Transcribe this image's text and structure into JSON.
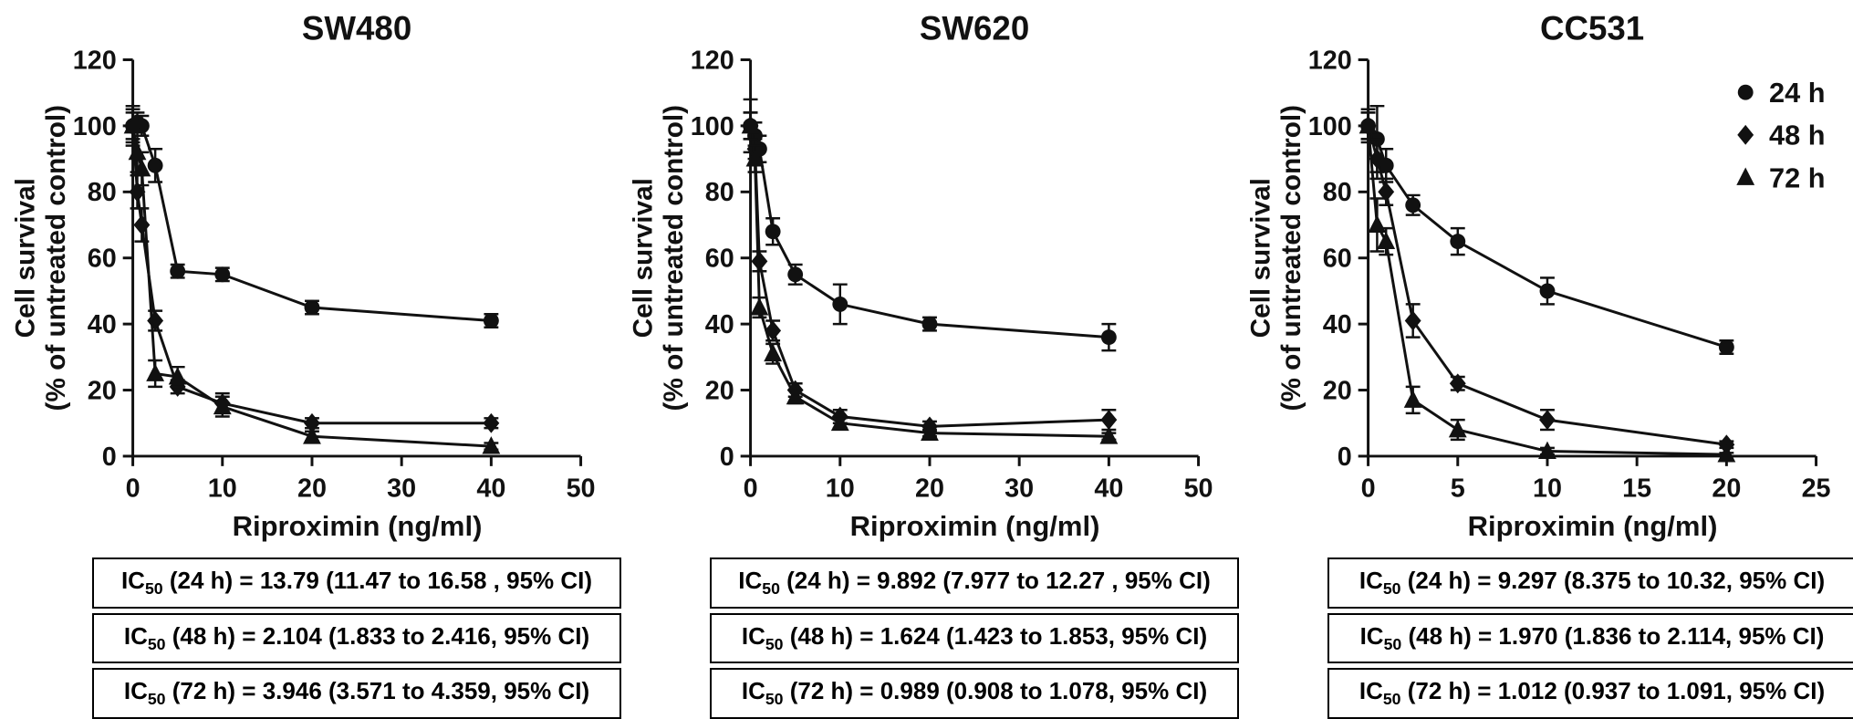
{
  "figure": {
    "xlabel": "Riproximin (ng/ml)",
    "ylabel_line1": "Cell survival",
    "ylabel_line2": "(% of untreated control)"
  },
  "chart_data": [
    {
      "type": "line",
      "title": "SW480",
      "xlabel": "Riproximin (ng/ml)",
      "ylabel_lines": [
        "Cell survival",
        "(% of untreated control)"
      ],
      "xlim": [
        0,
        50
      ],
      "ylim": [
        0,
        120
      ],
      "xticks": [
        0,
        10,
        20,
        30,
        40,
        50
      ],
      "yticks": [
        0,
        20,
        40,
        60,
        80,
        100,
        120
      ],
      "grid": false,
      "series": [
        {
          "name": "24 h",
          "marker": "circle",
          "x": [
            0,
            0.5,
            1,
            2.5,
            5,
            10,
            20,
            40
          ],
          "y": [
            100,
            101,
            100,
            88,
            56,
            55,
            45,
            41
          ],
          "err": [
            6,
            3,
            3,
            5,
            2,
            2,
            2,
            2
          ]
        },
        {
          "name": "48 h",
          "marker": "diamond",
          "x": [
            0,
            0.5,
            1,
            2.5,
            5,
            10,
            20,
            40
          ],
          "y": [
            100,
            80,
            70,
            41,
            21,
            16,
            10,
            10
          ],
          "err": [
            4,
            5,
            5,
            3,
            2,
            3,
            1.5,
            1.5
          ]
        },
        {
          "name": "72 h",
          "marker": "triangle",
          "x": [
            0,
            0.5,
            1,
            2.5,
            5,
            10,
            20,
            40
          ],
          "y": [
            100,
            92,
            87,
            25,
            24,
            15,
            6,
            3
          ],
          "err": [
            5,
            6,
            5,
            4,
            3,
            3,
            1.5,
            1
          ]
        }
      ],
      "ic50_rows": [
        {
          "pre": "IC",
          "sub": "50",
          "rest": " (24 h) = 13.79 (11.47 to 16.58 , 95% CI)"
        },
        {
          "pre": "IC",
          "sub": "50",
          "rest": " (48 h) = 2.104 (1.833 to 2.416, 95% CI)"
        },
        {
          "pre": "IC",
          "sub": "50",
          "rest": " (72 h) = 3.946 (3.571 to 4.359, 95% CI)"
        }
      ]
    },
    {
      "type": "line",
      "title": "SW620",
      "xlabel": "Riproximin (ng/ml)",
      "ylabel_lines": [
        "Cell survival",
        "(% of untreated control)"
      ],
      "xlim": [
        0,
        50
      ],
      "ylim": [
        0,
        120
      ],
      "xticks": [
        0,
        10,
        20,
        30,
        40,
        50
      ],
      "yticks": [
        0,
        20,
        40,
        60,
        80,
        100,
        120
      ],
      "grid": false,
      "series": [
        {
          "name": "24 h",
          "marker": "circle",
          "x": [
            0,
            0.5,
            1,
            2.5,
            5,
            10,
            20,
            40
          ],
          "y": [
            100,
            97,
            93,
            68,
            55,
            46,
            40,
            36
          ],
          "err": [
            8,
            4,
            4,
            4,
            3,
            6,
            2,
            4
          ]
        },
        {
          "name": "48 h",
          "marker": "diamond",
          "x": [
            0,
            0.5,
            1,
            2.5,
            5,
            10,
            20,
            40
          ],
          "y": [
            100,
            93,
            59,
            38,
            20,
            12,
            9,
            11
          ],
          "err": [
            4,
            3,
            3,
            3,
            2,
            2,
            1.5,
            3
          ]
        },
        {
          "name": "72 h",
          "marker": "triangle",
          "x": [
            0,
            0.5,
            1,
            2.5,
            5,
            10,
            20,
            40
          ],
          "y": [
            100,
            90,
            45,
            31,
            18,
            10,
            7,
            6
          ],
          "err": [
            4,
            4,
            3,
            3,
            2,
            1.5,
            1,
            1
          ]
        }
      ],
      "ic50_rows": [
        {
          "pre": "IC",
          "sub": "50",
          "rest": " (24 h) = 9.892 (7.977 to 12.27 , 95% CI)"
        },
        {
          "pre": "IC",
          "sub": "50",
          "rest": " (48 h) = 1.624 (1.423 to 1.853, 95% CI)"
        },
        {
          "pre": "IC",
          "sub": "50",
          "rest": " (72 h) = 0.989 (0.908 to 1.078, 95% CI)"
        }
      ]
    },
    {
      "type": "line",
      "title": "CC531",
      "xlabel": "Riproximin (ng/ml)",
      "ylabel_lines": [
        "Cell survival",
        "(% of untreated control)"
      ],
      "xlim": [
        0,
        25
      ],
      "ylim": [
        0,
        120
      ],
      "xticks": [
        0,
        5,
        10,
        15,
        20,
        25
      ],
      "yticks": [
        0,
        20,
        40,
        60,
        80,
        100,
        120
      ],
      "grid": false,
      "legend": [
        {
          "marker": "circle",
          "label": "24 h"
        },
        {
          "marker": "diamond",
          "label": "48 h"
        },
        {
          "marker": "triangle",
          "label": "72 h"
        }
      ],
      "series": [
        {
          "name": "24 h",
          "marker": "circle",
          "x": [
            0,
            0.5,
            1,
            2.5,
            5,
            10,
            20
          ],
          "y": [
            100,
            96,
            88,
            76,
            65,
            50,
            33
          ],
          "err": [
            4,
            10,
            5,
            3,
            4,
            4,
            2
          ]
        },
        {
          "name": "48 h",
          "marker": "diamond",
          "x": [
            0,
            0.5,
            1,
            2.5,
            5,
            10,
            20
          ],
          "y": [
            100,
            90,
            80,
            41,
            22,
            11,
            3.5
          ],
          "err": [
            4,
            6,
            4,
            5,
            2,
            3,
            1
          ]
        },
        {
          "name": "72 h",
          "marker": "triangle",
          "x": [
            0,
            0.5,
            1,
            2.5,
            5,
            10,
            20
          ],
          "y": [
            100,
            70,
            65,
            17,
            8,
            1.5,
            0.5
          ],
          "err": [
            5,
            8,
            4,
            4,
            3,
            1,
            0.5
          ]
        }
      ],
      "ic50_rows": [
        {
          "pre": "IC",
          "sub": "50",
          "rest": " (24 h) = 9.297 (8.375 to 10.32, 95% CI)"
        },
        {
          "pre": "IC",
          "sub": "50",
          "rest": " (48 h) = 1.970 (1.836 to 2.114, 95% CI)"
        },
        {
          "pre": "IC",
          "sub": "50",
          "rest": " (72 h) = 1.012 (0.937 to 1.091, 95% CI)"
        }
      ]
    }
  ]
}
